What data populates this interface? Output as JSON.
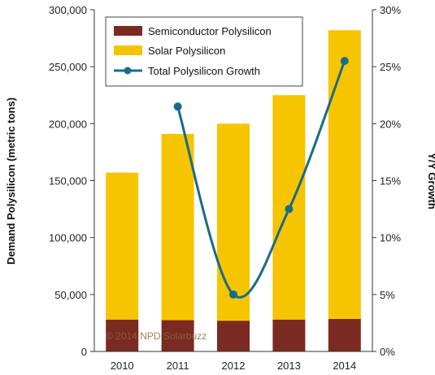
{
  "chart_data": {
    "type": "bar",
    "stacked": true,
    "categories": [
      "2010",
      "2011",
      "2012",
      "2013",
      "2014"
    ],
    "series": [
      {
        "name": "Semiconductor Polysilicon",
        "kind": "bar",
        "axis": "left",
        "color": "#7b2a22",
        "values": [
          28000,
          27500,
          27000,
          28000,
          28500
        ]
      },
      {
        "name": "Solar Polysilicon",
        "kind": "bar",
        "axis": "left",
        "color": "#f7c400",
        "values": [
          129000,
          163500,
          173000,
          197000,
          253500
        ]
      },
      {
        "name": "Total Polysilicon Growth",
        "kind": "line",
        "axis": "right",
        "color": "#1a6b8a",
        "values": [
          null,
          21.5,
          5.0,
          12.5,
          25.5
        ]
      }
    ],
    "ylabel": "Demand Polysilicon  (metric tons)",
    "y2label": "Y/Y Growth",
    "ylim": [
      0,
      300000
    ],
    "y2lim": [
      0,
      30
    ],
    "yticks": [
      "0",
      "50,000",
      "100,000",
      "150,000",
      "200,000",
      "250,000",
      "300,000"
    ],
    "y2ticks": [
      "0%",
      "5%",
      "10%",
      "15%",
      "20%",
      "25%",
      "30%"
    ],
    "grid": false,
    "legend_position": "top-left",
    "watermark": "© 2014  NPD  Solarbuzz"
  }
}
